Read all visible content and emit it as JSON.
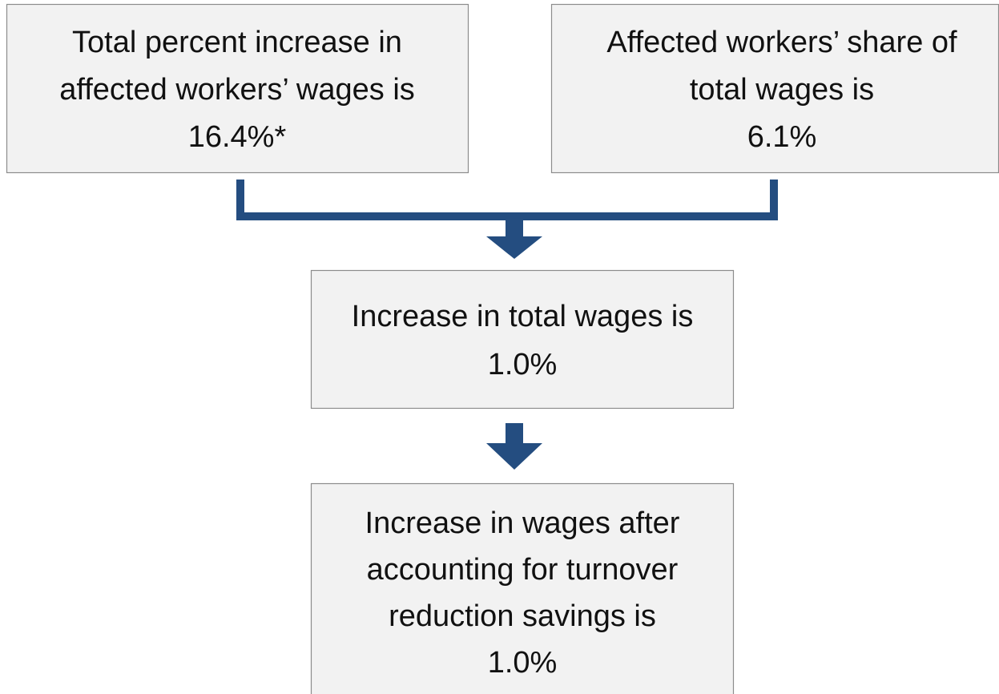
{
  "nodes": [
    {
      "lines": [
        "Total percent increase in",
        "affected workers’ wages is",
        "16.4%*"
      ]
    },
    {
      "lines": [
        "Affected workers’ share of",
        "total wages is",
        "6.1%"
      ]
    },
    {
      "lines": [
        "Increase in total wages is",
        "1.0%"
      ]
    },
    {
      "lines": [
        "Increase in wages after",
        "accounting for turnover",
        "reduction savings is",
        "1.0%"
      ]
    }
  ]
}
